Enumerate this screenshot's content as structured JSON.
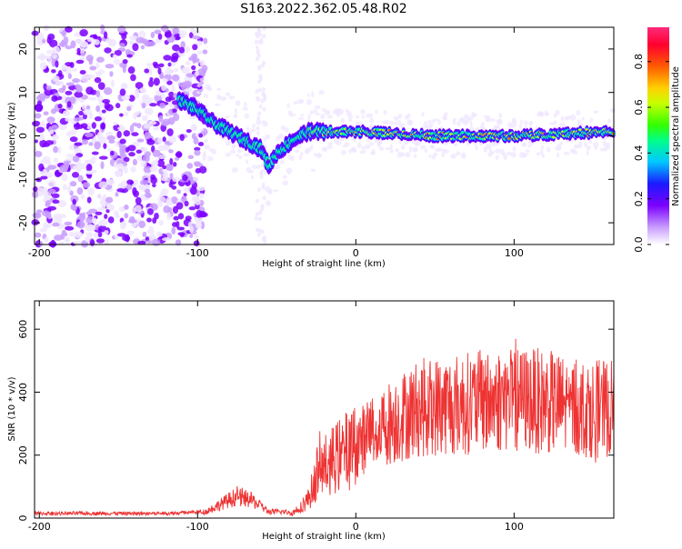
{
  "title": "S163.2022.362.05.48.R02",
  "chart_data": [
    {
      "type": "heatmap",
      "name": "spectrogram",
      "xlabel": "Height of straight line (km)",
      "ylabel": "Frequency (Hz)",
      "xlim": [
        -203,
        163
      ],
      "ylim": [
        -25,
        25
      ],
      "xticks": [
        "-200",
        "-100",
        "0",
        "100"
      ],
      "xtick_values": [
        -200,
        -100,
        0,
        100
      ],
      "yticks": [
        "-20",
        "-10",
        "0",
        "10",
        "20"
      ],
      "ytick_values": [
        -20,
        -10,
        0,
        10,
        20
      ],
      "colorbar": {
        "label": "Normalized spectral amplitude",
        "range": [
          0,
          0.95
        ],
        "ticks": [
          "0.0",
          "0.2",
          "0.4",
          "0.6",
          "0.8"
        ],
        "tick_values": [
          0.0,
          0.2,
          0.4,
          0.6,
          0.8
        ]
      },
      "ridge": {
        "description_points_height_km": [
          -110,
          -100,
          -90,
          -80,
          -70,
          -60,
          -55,
          -50,
          -40,
          -30,
          -20,
          0,
          50,
          100,
          163
        ],
        "description_points_freq_hz": [
          8,
          6,
          3,
          1,
          -1,
          -3,
          -7,
          -4,
          -1,
          1,
          1,
          1,
          0,
          0,
          1
        ]
      }
    },
    {
      "type": "line",
      "name": "snr",
      "xlabel": "Height of straight line (km)",
      "ylabel": "SNR (10 * v/v)",
      "xlim": [
        -203,
        163
      ],
      "ylim": [
        0,
        690
      ],
      "xticks": [
        "-200",
        "-100",
        "0",
        "100"
      ],
      "xtick_values": [
        -200,
        -100,
        0,
        100
      ],
      "yticks": [
        "0",
        "200",
        "400",
        "600"
      ],
      "ytick_values": [
        0,
        200,
        400,
        600
      ],
      "series": [
        {
          "name": "SNR",
          "color": "#ee3333",
          "trend_x": [
            -203,
            -120,
            -95,
            -85,
            -75,
            -65,
            -55,
            -45,
            -40,
            -30,
            -25,
            -20,
            -10,
            0,
            10,
            20,
            40,
            60,
            80,
            100,
            120,
            140,
            163
          ],
          "trend_y": [
            15,
            15,
            20,
            45,
            70,
            55,
            20,
            20,
            15,
            60,
            130,
            165,
            200,
            230,
            275,
            300,
            350,
            360,
            370,
            380,
            370,
            350,
            345
          ]
        }
      ]
    }
  ]
}
